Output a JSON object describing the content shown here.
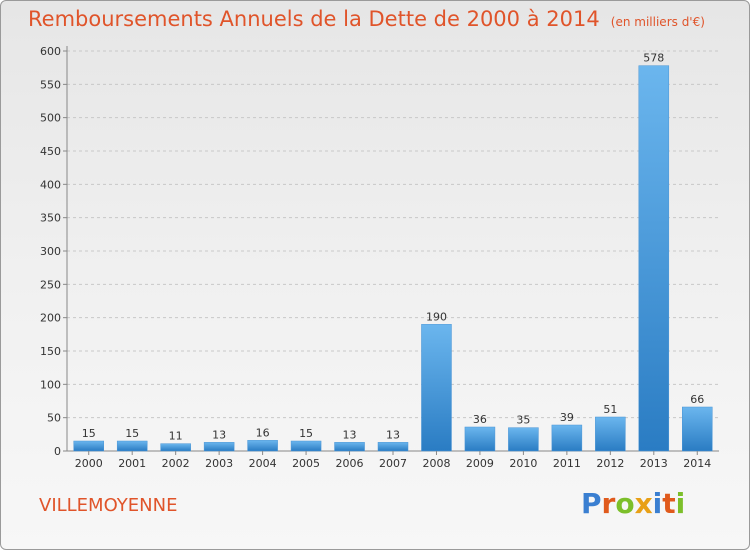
{
  "title": "Remboursements Annuels de la Dette de 2000 à 2014",
  "subtitle": "(en milliers d'€)",
  "commune": "VILLEMOYENNE",
  "logo": {
    "letters": [
      "P",
      "r",
      "o",
      "x",
      "i",
      "t",
      "i"
    ],
    "colors": [
      "#3a7fd1",
      "#e05a1c",
      "#7cbf2a",
      "#e8a016",
      "#3a7fd1",
      "#e05a1c",
      "#7cbf2a"
    ]
  },
  "colors": {
    "title": "#e0542a",
    "bar_light": "#6bb6ee",
    "bar_dark": "#2a7cc3",
    "grid": "#c8c8c8"
  },
  "chart_data": {
    "type": "bar",
    "categories": [
      "2000",
      "2001",
      "2002",
      "2003",
      "2004",
      "2005",
      "2006",
      "2007",
      "2008",
      "2009",
      "2010",
      "2011",
      "2012",
      "2013",
      "2014"
    ],
    "values": [
      15,
      15,
      11,
      13,
      16,
      15,
      13,
      13,
      190,
      36,
      35,
      39,
      51,
      578,
      66
    ],
    "ylim": [
      0,
      600
    ],
    "yticks": [
      0,
      50,
      100,
      150,
      200,
      250,
      300,
      350,
      400,
      450,
      500,
      550,
      600
    ],
    "grid": "horizontal dashed"
  }
}
